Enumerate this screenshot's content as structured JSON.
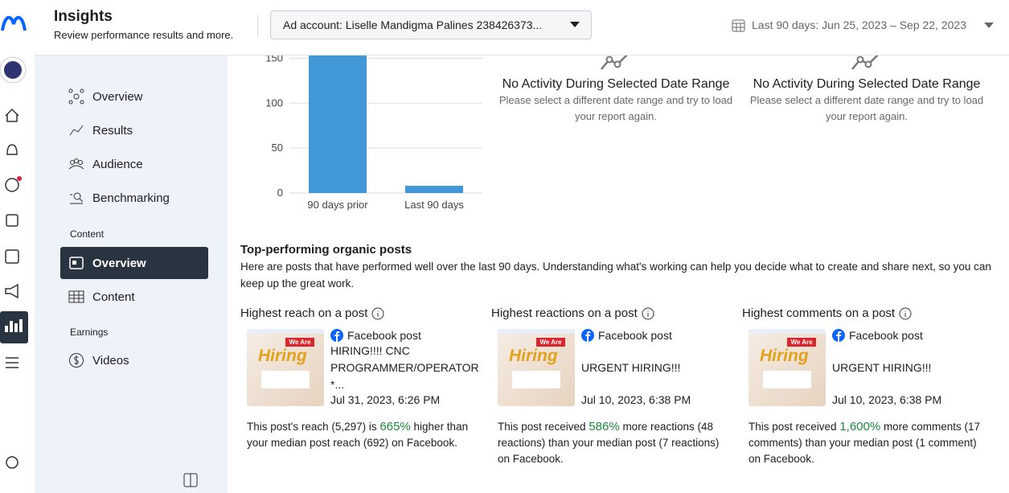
{
  "header": {
    "title": "Insights",
    "subtitle": "Review performance results and more.",
    "ad_account": "Ad account: Liselle Mandigma Palines 238426373...",
    "date_range": "Last 90 days: Jun 25, 2023 – Sep 22, 2023"
  },
  "sidebar": {
    "items": [
      "Overview",
      "Results",
      "Audience",
      "Benchmarking"
    ],
    "content_section": "Content",
    "content_items": [
      "Overview",
      "Content"
    ],
    "earnings_section": "Earnings",
    "earnings_items": [
      "Videos"
    ]
  },
  "chart_data": {
    "type": "bar",
    "categories": [
      "90 days prior",
      "Last 90 days"
    ],
    "values": [
      160,
      8
    ],
    "color": "#4297d7",
    "ylim": [
      0,
      154
    ],
    "yticks": [
      0,
      50,
      100,
      150
    ],
    "grid": true
  },
  "no_activity": [
    {
      "heading": "No Activity During Selected Date Range",
      "message": "Please select a different date range and try to load your report again."
    },
    {
      "heading": "No Activity During Selected Date Range",
      "message": "Please select a different date range and try to load your report again."
    }
  ],
  "top_posts": {
    "title": "Top-performing organic posts",
    "description": "Here are posts that have performed well over the last 90 days. Understanding what's working can help you decide what to create and share next, so you can keep up the great work.",
    "cards": [
      {
        "heading": "Highest reach on a post",
        "thumb_badge": "We Are",
        "thumb_title": "Hiring",
        "post_type": "Facebook post",
        "text": "HIRING!!!! CNC PROGRAMMER/OPERATOR *...",
        "date": "Jul 31, 2023, 6:26 PM",
        "summary_before": "This post's reach (5,297) is ",
        "summary_highlight": "665%",
        "summary_after": " higher than your median post reach (692) on Facebook."
      },
      {
        "heading": "Highest reactions on a post",
        "thumb_badge": "We Are",
        "thumb_title": "Hiring",
        "post_type": "Facebook post",
        "text": "URGENT HIRING!!!",
        "date": "Jul 10, 2023, 6:38 PM",
        "summary_before": "This post received ",
        "summary_highlight": "586%",
        "summary_after": " more reactions (48 reactions) than your median post (7 reactions) on Facebook."
      },
      {
        "heading": "Highest comments on a post",
        "thumb_badge": "We Are",
        "thumb_title": "Hiring",
        "post_type": "Facebook post",
        "text": "URGENT HIRING!!!",
        "date": "Jul 10, 2023, 6:38 PM",
        "summary_before": "This post received ",
        "summary_highlight": "1,600%",
        "summary_after": " more comments (17 comments) than your median post (1 comment) on Facebook."
      }
    ]
  }
}
